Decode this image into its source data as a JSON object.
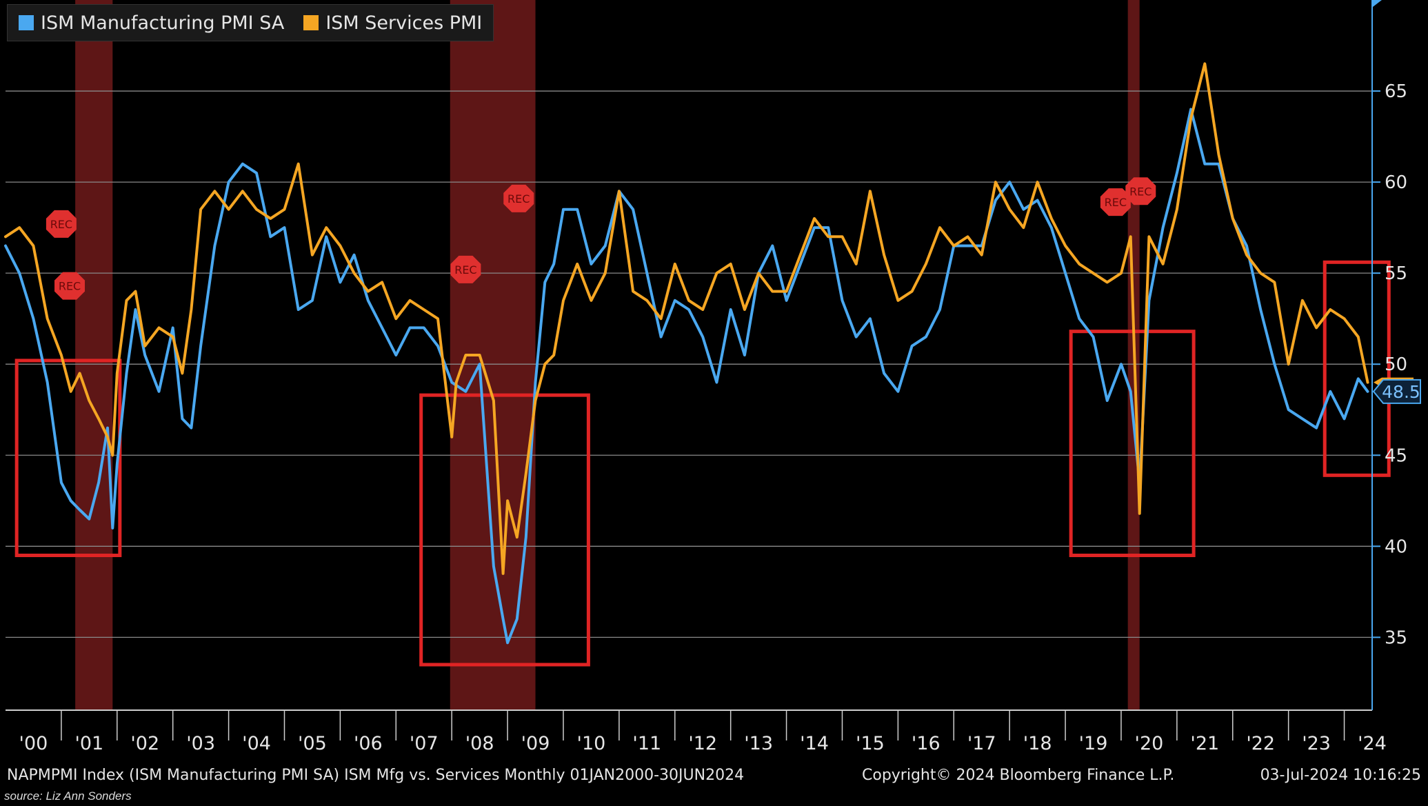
{
  "legend": {
    "series1": "ISM Manufacturing PMI SA",
    "series2": "ISM Services PMI"
  },
  "footer": {
    "description": "NAPMPMI Index (ISM Manufacturing PMI SA) ISM Mfg vs. Services  Monthly 01JAN2000-30JUN2024",
    "copyright": "Copyright© 2024 Bloomberg Finance L.P.",
    "timestamp": "03-Jul-2024 10:16:25"
  },
  "source": "source: Liz Ann Sonders",
  "colors": {
    "manufacturing": "#4aa8f0",
    "services": "#f5a623",
    "recession_band": "#6e1a1a",
    "highlight_box": "#e02424",
    "rec_marker": "#e0302f"
  },
  "chart_data": {
    "type": "line",
    "title": "ISM Mfg vs. Services",
    "frequency": "Monthly",
    "xlabel": "",
    "ylabel": "",
    "x_range": [
      2000.0,
      2024.5
    ],
    "ylim": [
      31,
      70
    ],
    "y_ticks": [
      35,
      40,
      45,
      50,
      55,
      60,
      65
    ],
    "x_tick_labels": [
      "'00",
      "'01",
      "'02",
      "'03",
      "'04",
      "'05",
      "'06",
      "'07",
      "'08",
      "'09",
      "'10",
      "'11",
      "'12",
      "'13",
      "'14",
      "'15",
      "'16",
      "'17",
      "'18",
      "'19",
      "'20",
      "'21",
      "'22",
      "'23",
      "'24"
    ],
    "grid": true,
    "legend_position": "top-left",
    "last_value_label": "48.5",
    "recession_periods": [
      [
        2001.25,
        2001.92
      ],
      [
        2007.97,
        2009.5
      ],
      [
        2020.12,
        2020.33
      ]
    ],
    "rec_markers": [
      {
        "label": "REC",
        "x": 2001.0,
        "y": 57.7
      },
      {
        "label": "REC",
        "x": 2001.15,
        "y": 54.3
      },
      {
        "label": "REC",
        "x": 2008.25,
        "y": 55.2
      },
      {
        "label": "REC",
        "x": 2009.2,
        "y": 59.1
      },
      {
        "label": "REC",
        "x": 2019.9,
        "y": 58.9
      },
      {
        "label": "REC",
        "x": 2020.35,
        "y": 59.5
      }
    ],
    "highlight_boxes": [
      {
        "x0": 2000.2,
        "x1": 2002.05,
        "y0": 39.5,
        "y1": 50.2
      },
      {
        "x0": 2007.45,
        "x1": 2010.45,
        "y0": 33.5,
        "y1": 48.3
      },
      {
        "x0": 2019.1,
        "x1": 2021.3,
        "y0": 39.5,
        "y1": 51.8
      },
      {
        "x0": 2023.65,
        "x1": 2024.8,
        "y0": 43.9,
        "y1": 55.6
      }
    ],
    "series": [
      {
        "name": "ISM Manufacturing PMI SA",
        "color": "#4aa8f0",
        "x": [
          2000.0,
          2000.25,
          2000.5,
          2000.75,
          2001.0,
          2001.17,
          2001.33,
          2001.5,
          2001.67,
          2001.83,
          2001.92,
          2002.0,
          2002.17,
          2002.33,
          2002.5,
          2002.75,
          2003.0,
          2003.17,
          2003.33,
          2003.5,
          2003.75,
          2004.0,
          2004.25,
          2004.5,
          2004.75,
          2005.0,
          2005.25,
          2005.5,
          2005.75,
          2006.0,
          2006.25,
          2006.5,
          2006.75,
          2007.0,
          2007.25,
          2007.5,
          2007.75,
          2008.0,
          2008.25,
          2008.5,
          2008.75,
          2008.92,
          2009.0,
          2009.17,
          2009.33,
          2009.5,
          2009.67,
          2009.83,
          2010.0,
          2010.25,
          2010.5,
          2010.75,
          2011.0,
          2011.25,
          2011.5,
          2011.75,
          2012.0,
          2012.25,
          2012.5,
          2012.75,
          2013.0,
          2013.25,
          2013.5,
          2013.75,
          2014.0,
          2014.25,
          2014.5,
          2014.75,
          2015.0,
          2015.25,
          2015.5,
          2015.75,
          2016.0,
          2016.25,
          2016.5,
          2016.75,
          2017.0,
          2017.25,
          2017.5,
          2017.75,
          2018.0,
          2018.25,
          2018.5,
          2018.75,
          2019.0,
          2019.25,
          2019.5,
          2019.75,
          2020.0,
          2020.17,
          2020.33,
          2020.5,
          2020.75,
          2021.0,
          2021.25,
          2021.5,
          2021.75,
          2022.0,
          2022.25,
          2022.5,
          2022.75,
          2023.0,
          2023.25,
          2023.5,
          2023.75,
          2024.0,
          2024.25,
          2024.42
        ],
        "values": [
          56.5,
          55.0,
          52.5,
          49.0,
          43.5,
          42.5,
          42.0,
          41.5,
          43.5,
          46.5,
          41.0,
          44.5,
          49.5,
          53.0,
          50.5,
          48.5,
          52.0,
          47.0,
          46.5,
          51.0,
          56.5,
          60.0,
          61.0,
          60.5,
          57.0,
          57.5,
          53.0,
          53.5,
          57.0,
          54.5,
          56.0,
          53.5,
          52.0,
          50.5,
          52.0,
          52.0,
          51.0,
          49.0,
          48.5,
          50.0,
          38.9,
          36.0,
          34.7,
          36.0,
          40.5,
          49.0,
          54.5,
          55.5,
          58.5,
          58.5,
          55.5,
          56.5,
          59.5,
          58.5,
          55.0,
          51.5,
          53.5,
          53.0,
          51.5,
          49.0,
          53.0,
          50.5,
          55.0,
          56.5,
          53.5,
          55.5,
          57.5,
          57.5,
          53.5,
          51.5,
          52.5,
          49.5,
          48.5,
          51.0,
          51.5,
          53.0,
          56.5,
          56.5,
          56.5,
          59.0,
          60.0,
          58.5,
          59.0,
          57.5,
          55.0,
          52.5,
          51.5,
          48.0,
          50.0,
          48.5,
          43.5,
          53.5,
          57.5,
          60.5,
          64.0,
          61.0,
          61.0,
          58.0,
          56.5,
          53.0,
          50.0,
          47.5,
          47.0,
          46.5,
          48.5,
          47.0,
          49.2,
          48.5
        ]
      },
      {
        "name": "ISM Services PMI",
        "color": "#f5a623",
        "x": [
          2000.0,
          2000.25,
          2000.5,
          2000.75,
          2001.0,
          2001.17,
          2001.33,
          2001.5,
          2001.67,
          2001.83,
          2001.92,
          2002.0,
          2002.17,
          2002.33,
          2002.5,
          2002.75,
          2003.0,
          2003.17,
          2003.33,
          2003.5,
          2003.75,
          2004.0,
          2004.25,
          2004.5,
          2004.75,
          2005.0,
          2005.25,
          2005.5,
          2005.75,
          2006.0,
          2006.25,
          2006.5,
          2006.75,
          2007.0,
          2007.25,
          2007.5,
          2007.75,
          2008.0,
          2008.08,
          2008.25,
          2008.5,
          2008.75,
          2008.92,
          2009.0,
          2009.17,
          2009.33,
          2009.5,
          2009.67,
          2009.83,
          2010.0,
          2010.25,
          2010.5,
          2010.75,
          2011.0,
          2011.25,
          2011.5,
          2011.75,
          2012.0,
          2012.25,
          2012.5,
          2012.75,
          2013.0,
          2013.25,
          2013.5,
          2013.75,
          2014.0,
          2014.25,
          2014.5,
          2014.75,
          2015.0,
          2015.25,
          2015.5,
          2015.75,
          2016.0,
          2016.25,
          2016.5,
          2016.75,
          2017.0,
          2017.25,
          2017.5,
          2017.75,
          2018.0,
          2018.25,
          2018.5,
          2018.75,
          2019.0,
          2019.25,
          2019.5,
          2019.75,
          2020.0,
          2020.17,
          2020.33,
          2020.5,
          2020.75,
          2021.0,
          2021.25,
          2021.5,
          2021.75,
          2022.0,
          2022.25,
          2022.5,
          2022.75,
          2023.0,
          2023.25,
          2023.5,
          2023.75,
          2024.0,
          2024.25,
          2024.42
        ],
        "values": [
          57.0,
          57.5,
          56.5,
          52.5,
          50.5,
          48.5,
          49.5,
          48.0,
          47.0,
          46.0,
          45.0,
          49.5,
          53.5,
          54.0,
          51.0,
          52.0,
          51.5,
          49.5,
          53.0,
          58.5,
          59.5,
          58.5,
          59.5,
          58.5,
          58.0,
          58.5,
          61.0,
          56.0,
          57.5,
          56.5,
          55.0,
          54.0,
          54.5,
          52.5,
          53.5,
          53.0,
          52.5,
          46.0,
          49.0,
          50.5,
          50.5,
          48.0,
          38.5,
          42.5,
          40.5,
          44.0,
          48.0,
          50.0,
          50.5,
          53.5,
          55.5,
          53.5,
          55.0,
          59.5,
          54.0,
          53.5,
          52.5,
          55.5,
          53.5,
          53.0,
          55.0,
          55.5,
          53.0,
          55.0,
          54.0,
          54.0,
          56.0,
          58.0,
          57.0,
          57.0,
          55.5,
          59.5,
          56.0,
          53.5,
          54.0,
          55.5,
          57.5,
          56.5,
          57.0,
          56.0,
          60.0,
          58.5,
          57.5,
          60.0,
          58.0,
          56.5,
          55.5,
          55.0,
          54.5,
          55.0,
          57.0,
          41.8,
          57.0,
          55.5,
          58.5,
          63.5,
          66.5,
          61.5,
          58.0,
          56.0,
          55.0,
          54.5,
          50.0,
          53.5,
          52.0,
          53.0,
          52.5,
          51.5,
          49.0
        ]
      }
    ]
  }
}
